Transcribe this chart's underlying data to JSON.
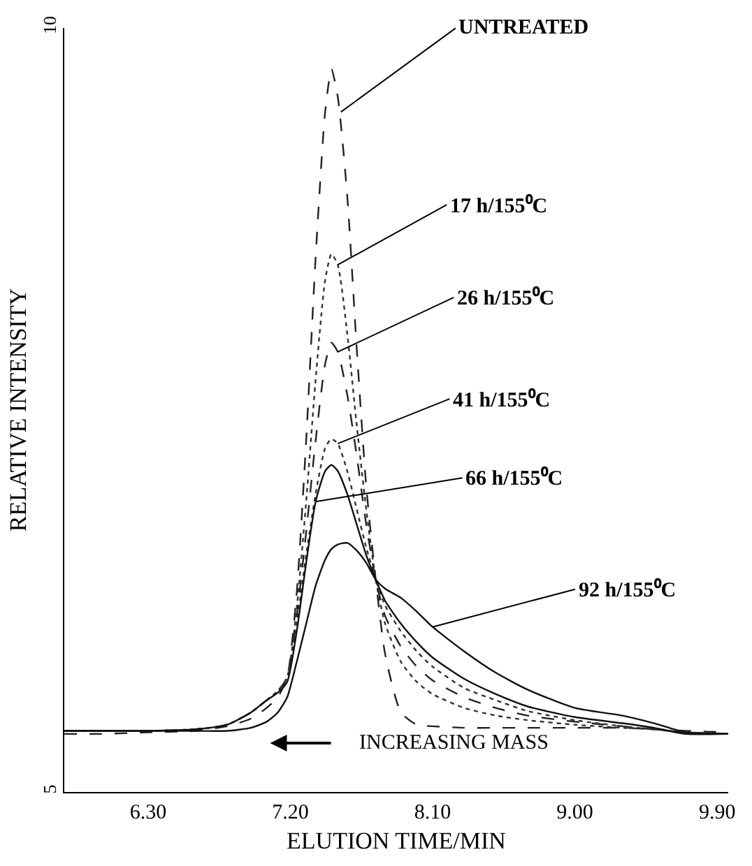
{
  "chart_data": {
    "type": "line",
    "xlabel": "ELUTION TIME/MIN",
    "ylabel": "RELATIVE INTENSITY",
    "x": [
      5.77,
      6.0,
      6.3,
      6.6,
      6.8,
      6.95,
      7.05,
      7.12,
      7.18,
      7.24,
      7.3,
      7.36,
      7.42,
      7.46,
      7.5,
      7.56,
      7.62,
      7.68,
      7.74,
      7.8,
      7.9,
      8.0,
      8.1,
      8.3,
      8.5,
      8.7,
      9.0,
      9.3,
      9.5,
      9.7,
      9.97
    ],
    "series": [
      {
        "color": "#222222",
        "line_style": "dashed",
        "values": [
          5.38,
          5.38,
          5.39,
          5.4,
          5.43,
          5.48,
          5.55,
          5.62,
          5.75,
          6.3,
          7.3,
          8.5,
          9.45,
          9.73,
          9.55,
          8.9,
          7.9,
          7.0,
          6.39,
          5.9,
          5.52,
          5.44,
          5.43,
          5.42,
          5.42,
          5.42,
          5.42,
          5.42,
          5.41,
          5.4,
          5.39
        ]
      },
      {
        "color": "#333333",
        "line_style": "dotted",
        "values": [
          5.4,
          5.4,
          5.4,
          5.41,
          5.44,
          5.52,
          5.6,
          5.66,
          5.75,
          6.2,
          6.9,
          7.7,
          8.35,
          8.52,
          8.45,
          8.0,
          7.4,
          6.85,
          6.39,
          6.1,
          5.85,
          5.72,
          5.64,
          5.55,
          5.5,
          5.47,
          5.44,
          5.42,
          5.41,
          5.39,
          5.38
        ]
      },
      {
        "color": "#222222",
        "line_style": "dashed",
        "values": [
          5.4,
          5.4,
          5.4,
          5.41,
          5.44,
          5.52,
          5.6,
          5.66,
          5.75,
          6.15,
          6.7,
          7.3,
          7.8,
          7.94,
          7.88,
          7.6,
          7.2,
          6.75,
          6.39,
          6.15,
          5.95,
          5.82,
          5.73,
          5.62,
          5.55,
          5.5,
          5.46,
          5.43,
          5.41,
          5.39,
          5.38
        ]
      },
      {
        "color": "#333333",
        "line_style": "dotted",
        "values": [
          5.4,
          5.4,
          5.4,
          5.41,
          5.44,
          5.52,
          5.6,
          5.66,
          5.75,
          6.1,
          6.55,
          6.95,
          7.25,
          7.31,
          7.28,
          7.1,
          6.85,
          6.6,
          6.39,
          6.22,
          6.05,
          5.92,
          5.82,
          5.68,
          5.6,
          5.53,
          5.47,
          5.43,
          5.41,
          5.39,
          5.38
        ]
      },
      {
        "color": "#111111",
        "line_style": "solid",
        "values": [
          5.4,
          5.4,
          5.4,
          5.41,
          5.44,
          5.52,
          5.6,
          5.65,
          5.72,
          6.05,
          6.5,
          6.9,
          7.1,
          7.14,
          7.1,
          6.95,
          6.75,
          6.55,
          6.39,
          6.25,
          6.1,
          5.98,
          5.88,
          5.74,
          5.64,
          5.56,
          5.49,
          5.45,
          5.42,
          5.38,
          5.38
        ]
      },
      {
        "color": "#111111",
        "line_style": "solid",
        "values": [
          5.4,
          5.4,
          5.4,
          5.4,
          5.4,
          5.42,
          5.46,
          5.52,
          5.62,
          5.85,
          6.1,
          6.35,
          6.52,
          6.59,
          6.62,
          6.63,
          6.58,
          6.5,
          6.39,
          6.33,
          6.27,
          6.18,
          6.08,
          5.92,
          5.78,
          5.67,
          5.55,
          5.5,
          5.45,
          5.39,
          5.38
        ]
      }
    ],
    "annotations": [
      {
        "text": "UNTREATED",
        "x": 7.52,
        "y": 9.45
      },
      {
        "text": "17 h/155⁰C",
        "x": 7.5,
        "y": 8.45
      },
      {
        "text": "26 h/155⁰C",
        "x": 7.5,
        "y": 7.88
      },
      {
        "text": "41 h/155⁰C",
        "x": 7.5,
        "y": 7.28
      },
      {
        "text": "66 h/155⁰C",
        "x": 7.36,
        "y": 6.9
      },
      {
        "text": "92 h/155⁰C",
        "x": 8.1,
        "y": 6.08
      },
      "INCREASING MASS"
    ],
    "xlim": [
      5.77,
      9.97
    ],
    "xticks": [
      {
        "value": 6.3,
        "label": "6.30"
      },
      {
        "value": 7.2,
        "label": "7.20"
      },
      {
        "value": 8.1,
        "label": "8.10"
      },
      {
        "value": 9.0,
        "label": "9.00"
      },
      {
        "value": 9.9,
        "label": "9.90"
      }
    ],
    "ylim": [
      5,
      10
    ],
    "yticks": [
      5,
      10
    ],
    "marker": "none"
  }
}
